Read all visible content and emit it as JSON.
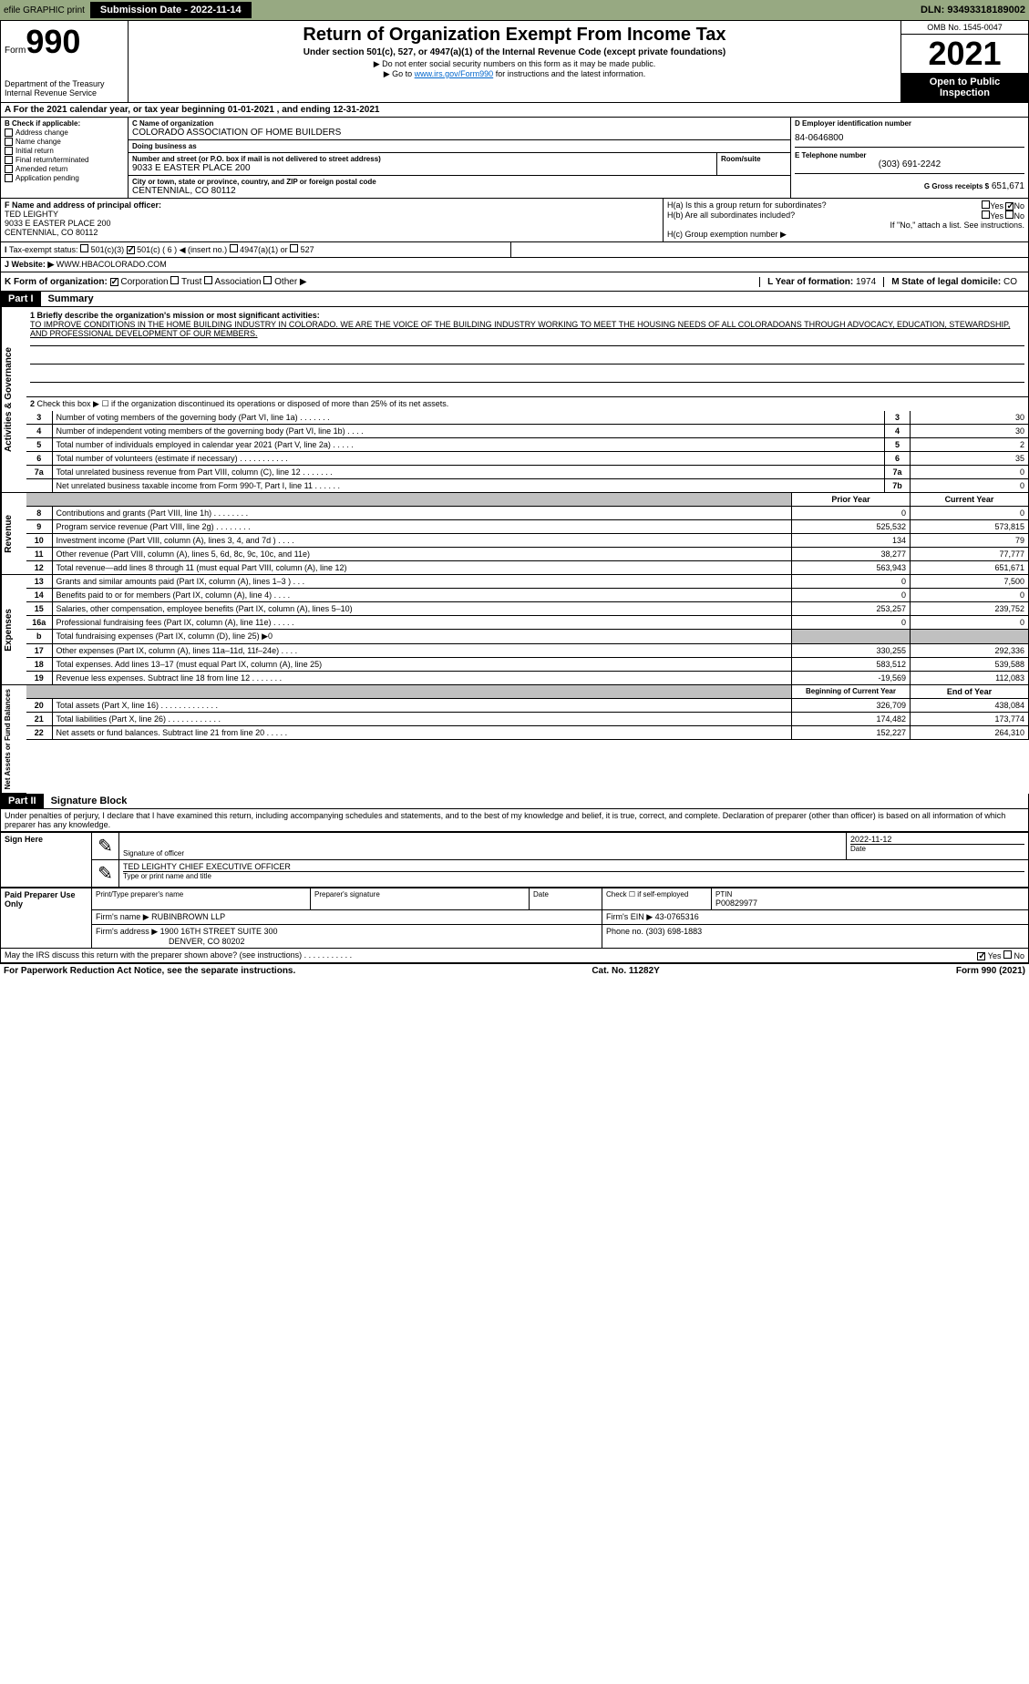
{
  "header_bar": {
    "efile": "efile GRAPHIC print",
    "submission": "Submission Date - 2022-11-14",
    "dln": "DLN: 93493318189002"
  },
  "form_header": {
    "form_label": "Form",
    "form_number": "990",
    "dept": "Department of the Treasury",
    "irs": "Internal Revenue Service",
    "title": "Return of Organization Exempt From Income Tax",
    "subtitle": "Under section 501(c), 527, or 4947(a)(1) of the Internal Revenue Code (except private foundations)",
    "note1": "▶ Do not enter social security numbers on this form as it may be made public.",
    "note2_pre": "▶ Go to ",
    "note2_link": "www.irs.gov/Form990",
    "note2_post": " for instructions and the latest information.",
    "omb": "OMB No. 1545-0047",
    "year": "2021",
    "inspect": "Open to Public Inspection"
  },
  "line_a": "For the 2021 calendar year, or tax year beginning 01-01-2021    , and ending 12-31-2021",
  "section_b": {
    "header": "B Check if applicable:",
    "items": [
      "Address change",
      "Name change",
      "Initial return",
      "Final return/terminated",
      "Amended return",
      "Application pending"
    ]
  },
  "section_c": {
    "name_label": "C Name of organization",
    "name": "COLORADO ASSOCIATION OF HOME BUILDERS",
    "dba_label": "Doing business as",
    "dba": "",
    "street_label": "Number and street (or P.O. box if mail is not delivered to street address)",
    "room_label": "Room/suite",
    "street": "9033 E EASTER PLACE 200",
    "city_label": "City or town, state or province, country, and ZIP or foreign postal code",
    "city": "CENTENNIAL, CO  80112"
  },
  "section_d": {
    "label": "D Employer identification number",
    "value": "84-0646800"
  },
  "section_e": {
    "label": "E Telephone number",
    "value": "(303) 691-2242"
  },
  "section_g": {
    "label": "G Gross receipts $",
    "value": "651,671"
  },
  "section_f": {
    "label": "F Name and address of principal officer:",
    "name": "TED LEIGHTY",
    "street": "9033 E EASTER PLACE 200",
    "city": "CENTENNIAL, CO  80112"
  },
  "section_h": {
    "ha": "H(a)  Is this a group return for subordinates?",
    "hb": "H(b)  Are all subordinates included?",
    "hb_note": "If \"No,\" attach a list. See instructions.",
    "hc": "H(c)  Group exemption number ▶",
    "yes": "Yes",
    "no": "No"
  },
  "section_i": {
    "label": "Tax-exempt status:",
    "opt1": "501(c)(3)",
    "opt2": "501(c) ( 6 ) ◀ (insert no.)",
    "opt3": "4947(a)(1) or",
    "opt4": "527"
  },
  "section_j": {
    "label": "Website: ▶",
    "value": "WWW.HBACOLORADO.COM"
  },
  "section_k": {
    "label": "K Form of organization:",
    "opts": [
      "Corporation",
      "Trust",
      "Association",
      "Other ▶"
    ]
  },
  "section_l": {
    "label": "L Year of formation:",
    "value": "1974"
  },
  "section_m": {
    "label": "M State of legal domicile:",
    "value": "CO"
  },
  "part1": {
    "header": "Part I",
    "title": "Summary",
    "line1_label": "1 Briefly describe the organization's mission or most significant activities:",
    "mission": "TO IMPROVE CONDITIONS IN THE HOME BUILDING INDUSTRY IN COLORADO. WE ARE THE VOICE OF THE BUILDING INDUSTRY WORKING TO MEET THE HOUSING NEEDS OF ALL COLORADOANS THROUGH ADVOCACY, EDUCATION, STEWARDSHIP, AND PROFESSIONAL DEVELOPMENT OF OUR MEMBERS.",
    "line2": "Check this box ▶ ☐ if the organization discontinued its operations or disposed of more than 25% of its net assets.",
    "governance_label": "Activities & Governance",
    "revenue_label": "Revenue",
    "expenses_label": "Expenses",
    "netassets_label": "Net Assets or Fund Balances",
    "prior_year": "Prior Year",
    "current_year": "Current Year",
    "begin_year": "Beginning of Current Year",
    "end_year": "End of Year",
    "lines_gov": [
      {
        "n": "3",
        "t": "Number of voting members of the governing body (Part VI, line 1a)  .    .    .    .    .    .    .",
        "b": "3",
        "v": "30"
      },
      {
        "n": "4",
        "t": "Number of independent voting members of the governing body (Part VI, line 1b)  .    .    .    .",
        "b": "4",
        "v": "30"
      },
      {
        "n": "5",
        "t": "Total number of individuals employed in calendar year 2021 (Part V, line 2a)  .    .    .    .    .",
        "b": "5",
        "v": "2"
      },
      {
        "n": "6",
        "t": "Total number of volunteers (estimate if necessary)   .    .    .    .    .    .    .    .    .    .    .",
        "b": "6",
        "v": "35"
      },
      {
        "n": "7a",
        "t": "Total unrelated business revenue from Part VIII, column (C), line 12  .    .    .    .    .    .    .",
        "b": "7a",
        "v": "0"
      },
      {
        "n": "",
        "t": "Net unrelated business taxable income from Form 990-T, Part I, line 11   .    .    .    .    .    .",
        "b": "7b",
        "v": "0"
      }
    ],
    "lines_rev": [
      {
        "n": "8",
        "t": "Contributions and grants (Part VIII, line 1h)  .    .    .    .    .    .    .    .",
        "p": "0",
        "c": "0"
      },
      {
        "n": "9",
        "t": "Program service revenue (Part VIII, line 2g)  .    .    .    .    .    .    .    .",
        "p": "525,532",
        "c": "573,815"
      },
      {
        "n": "10",
        "t": "Investment income (Part VIII, column (A), lines 3, 4, and 7d )  .    .    .    .",
        "p": "134",
        "c": "79"
      },
      {
        "n": "11",
        "t": "Other revenue (Part VIII, column (A), lines 5, 6d, 8c, 9c, 10c, and 11e)",
        "p": "38,277",
        "c": "77,777"
      },
      {
        "n": "12",
        "t": "Total revenue—add lines 8 through 11 (must equal Part VIII, column (A), line 12)",
        "p": "563,943",
        "c": "651,671"
      }
    ],
    "lines_exp": [
      {
        "n": "13",
        "t": "Grants and similar amounts paid (Part IX, column (A), lines 1–3 )  .    .    .",
        "p": "0",
        "c": "7,500"
      },
      {
        "n": "14",
        "t": "Benefits paid to or for members (Part IX, column (A), line 4)  .    .    .    .",
        "p": "0",
        "c": "0"
      },
      {
        "n": "15",
        "t": "Salaries, other compensation, employee benefits (Part IX, column (A), lines 5–10)",
        "p": "253,257",
        "c": "239,752"
      },
      {
        "n": "16a",
        "t": "Professional fundraising fees (Part IX, column (A), line 11e)  .    .    .    .    .",
        "p": "0",
        "c": "0"
      },
      {
        "n": "b",
        "t": "Total fundraising expenses (Part IX, column (D), line 25) ▶0",
        "p": "",
        "c": "",
        "shaded": true
      },
      {
        "n": "17",
        "t": "Other expenses (Part IX, column (A), lines 11a–11d, 11f–24e)  .    .    .    .",
        "p": "330,255",
        "c": "292,336"
      },
      {
        "n": "18",
        "t": "Total expenses. Add lines 13–17 (must equal Part IX, column (A), line 25)",
        "p": "583,512",
        "c": "539,588"
      },
      {
        "n": "19",
        "t": "Revenue less expenses. Subtract line 18 from line 12  .    .    .    .    .    .    .",
        "p": "-19,569",
        "c": "112,083"
      }
    ],
    "lines_net": [
      {
        "n": "20",
        "t": "Total assets (Part X, line 16)  .    .    .    .    .    .    .    .    .    .    .    .    .",
        "p": "326,709",
        "c": "438,084"
      },
      {
        "n": "21",
        "t": "Total liabilities (Part X, line 26)  .    .    .    .    .    .    .    .    .    .    .    .",
        "p": "174,482",
        "c": "173,774"
      },
      {
        "n": "22",
        "t": "Net assets or fund balances. Subtract line 21 from line 20   .    .    .    .    .",
        "p": "152,227",
        "c": "264,310"
      }
    ]
  },
  "part2": {
    "header": "Part II",
    "title": "Signature Block",
    "penalty": "Under penalties of perjury, I declare that I have examined this return, including accompanying schedules and statements, and to the best of my knowledge and belief, it is true, correct, and complete. Declaration of preparer (other than officer) is based on all information of which preparer has any knowledge.",
    "sign_here": "Sign Here",
    "sig_officer": "Signature of officer",
    "sig_date": "2022-11-12",
    "date_label": "Date",
    "officer_name": "TED LEIGHTY CHIEF EXECUTIVE OFFICER",
    "type_name": "Type or print name and title",
    "paid_preparer": "Paid Preparer Use Only",
    "print_name": "Print/Type preparer's name",
    "prep_sig": "Preparer's signature",
    "check_if": "Check ☐ if self-employed",
    "ptin_label": "PTIN",
    "ptin": "P00829977",
    "firm_name_label": "Firm's name    ▶",
    "firm_name": "RUBINBROWN LLP",
    "firm_ein_label": "Firm's EIN ▶",
    "firm_ein": "43-0765316",
    "firm_addr_label": "Firm's address ▶",
    "firm_addr1": "1900 16TH STREET SUITE 300",
    "firm_addr2": "DENVER, CO  80202",
    "phone_label": "Phone no.",
    "phone": "(303) 698-1883",
    "may_irs": "May the IRS discuss this return with the preparer shown above? (see instructions)  .    .    .    .    .    .    .    .    .    .    ."
  },
  "footer": {
    "left": "For Paperwork Reduction Act Notice, see the separate instructions.",
    "center": "Cat. No. 11282Y",
    "right": "Form 990 (2021)"
  }
}
